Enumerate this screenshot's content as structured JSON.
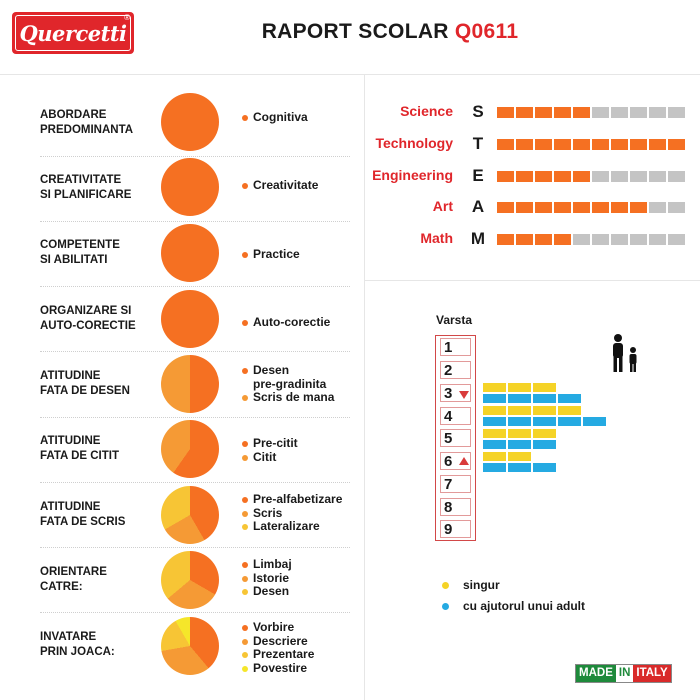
{
  "header": {
    "logo_text": "Quercetti",
    "logo_reg": "®",
    "title_prefix": "RAPORT SCOLAR",
    "title_code": "Q0611"
  },
  "colors": {
    "orange": "#f57022",
    "light_orange": "#f59a35",
    "yellow": "#f7c535",
    "red": "#e0262b",
    "gray": "#c4c4c4",
    "blue": "#25aae2",
    "bright_yellow": "#f5d327"
  },
  "categories": [
    {
      "label_line1": "ABORDARE",
      "label_line2": "PREDOMINANTA",
      "legend": [
        {
          "text": "Cognitiva",
          "color": "#f57022"
        }
      ]
    },
    {
      "label_line1": "CREATIVITATE",
      "label_line2": "SI PLANIFICARE",
      "legend": [
        {
          "text": "Creativitate",
          "color": "#f57022"
        }
      ]
    },
    {
      "label_line1": "COMPETENTE",
      "label_line2": "SI ABILITATI",
      "legend": [
        {
          "text": "Practice",
          "color": "#f57022"
        }
      ]
    },
    {
      "label_line1": "ORGANIZARE SI",
      "label_line2": "AUTO-CORECTIE",
      "legend": [
        {
          "text": "Auto-corectie",
          "color": "#f57022"
        }
      ]
    },
    {
      "label_line1": "ATITUDINE",
      "label_line2": "FATA DE DESEN",
      "legend": [
        {
          "text": "Desen",
          "color": "#f57022"
        },
        {
          "text": "pre-gradinita",
          "color": ""
        },
        {
          "text": "Scris de mana",
          "color": "#f59a35"
        }
      ]
    },
    {
      "label_line1": "ATITUDINE",
      "label_line2": "FATA DE CITIT",
      "legend": [
        {
          "text": "Pre-citit",
          "color": "#f57022"
        },
        {
          "text": "Citit",
          "color": "#f59a35"
        }
      ]
    },
    {
      "label_line1": "ATITUDINE",
      "label_line2": "FATA DE SCRIS",
      "legend": [
        {
          "text": "Pre-alfabetizare",
          "color": "#f57022"
        },
        {
          "text": "Scris",
          "color": "#f59a35"
        },
        {
          "text": "Lateralizare",
          "color": "#f7c535"
        }
      ]
    },
    {
      "label_line1": "ORIENTARE",
      "label_line2": "CATRE:",
      "legend": [
        {
          "text": "Limbaj",
          "color": "#f57022"
        },
        {
          "text": "Istorie",
          "color": "#f59a35"
        },
        {
          "text": "Desen",
          "color": "#f7c535"
        }
      ]
    },
    {
      "label_line1": "INVATARE",
      "label_line2": "PRIN JOACA:",
      "legend": [
        {
          "text": "Vorbire",
          "color": "#f57022"
        },
        {
          "text": "Descriere",
          "color": "#f59a35"
        },
        {
          "text": "Prezentare",
          "color": "#f7c535"
        },
        {
          "text": "Povestire",
          "color": "#f5e62a"
        }
      ]
    }
  ],
  "steam": [
    {
      "name": "Science",
      "letter": "S",
      "filled": 5,
      "total": 10
    },
    {
      "name": "Technology",
      "letter": "T",
      "filled": 10,
      "total": 10
    },
    {
      "name": "Engineering",
      "letter": "E",
      "filled": 5,
      "total": 10
    },
    {
      "name": "Art",
      "letter": "A",
      "filled": 8,
      "total": 10
    },
    {
      "name": "Math",
      "letter": "M",
      "filled": 4,
      "total": 10
    }
  ],
  "varsta": {
    "title": "Varsta",
    "ages": [
      "1",
      "2",
      "3",
      "4",
      "5",
      "6",
      "7",
      "8",
      "9"
    ],
    "range_start_marker": "3",
    "range_end_marker": "6",
    "bars": [
      {
        "color": "yellow",
        "count": 3
      },
      {
        "color": "blue",
        "count": 4
      },
      {
        "color": "yellow",
        "count": 4
      },
      {
        "color": "blue",
        "count": 5
      },
      {
        "color": "yellow",
        "count": 3
      },
      {
        "color": "blue",
        "count": 3
      },
      {
        "color": "yellow",
        "count": 2
      },
      {
        "color": "blue",
        "count": 3
      }
    ],
    "key": [
      {
        "label": "singur",
        "color": "#f5d327"
      },
      {
        "label": "cu ajutorul unui adult",
        "color": "#25aae2"
      }
    ]
  },
  "footer": {
    "made": "MADE",
    "in": "IN",
    "italy": "ITALY"
  }
}
